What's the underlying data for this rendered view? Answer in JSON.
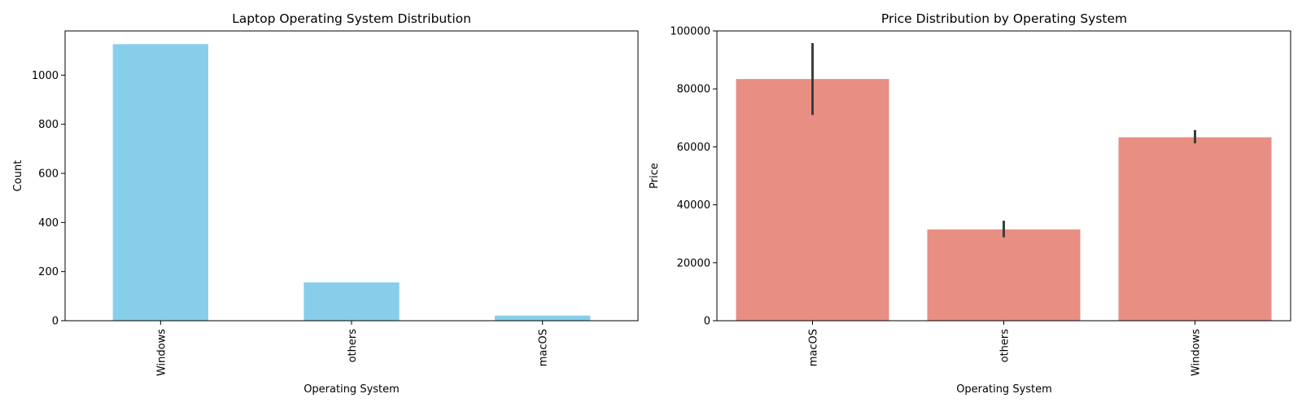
{
  "chart_data": [
    {
      "type": "bar",
      "title": "Laptop Operating System Distribution",
      "xlabel": "Operating System",
      "ylabel": "Count",
      "categories": [
        "Windows",
        "others",
        "macOS"
      ],
      "values": [
        1126,
        156,
        21
      ],
      "ylim": [
        0,
        1180
      ],
      "yticks": [
        0,
        200,
        400,
        600,
        800,
        1000
      ],
      "color": "#87ceeb",
      "grid": false
    },
    {
      "type": "bar",
      "title": "Price Distribution by Operating System",
      "xlabel": "Operating System",
      "ylabel": "Price",
      "categories": [
        "macOS",
        "others",
        "Windows"
      ],
      "values": [
        83400,
        31500,
        63300
      ],
      "error_low": [
        71000,
        28800,
        61200
      ],
      "error_high": [
        95800,
        34500,
        65800
      ],
      "ylim": [
        0,
        100000
      ],
      "yticks": [
        0,
        20000,
        40000,
        60000,
        80000,
        100000
      ],
      "color": "#e88e82",
      "error_color": "#3d3d3d",
      "grid": false
    }
  ]
}
